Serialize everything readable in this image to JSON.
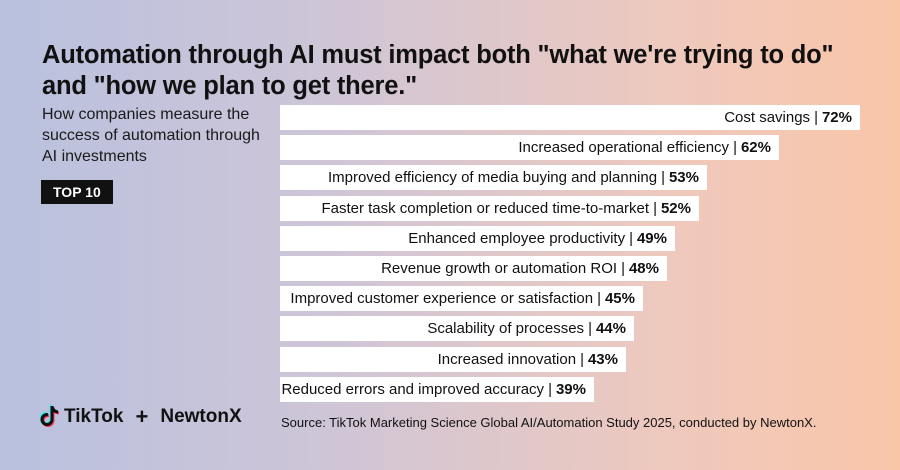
{
  "header": {
    "title": "Automation through AI must impact both \"what we're trying to do\" and \"how we plan to get there.\"",
    "subtitle": "How companies measure the success of automation through AI investments",
    "badge": "TOP 10"
  },
  "chart_data": {
    "type": "bar",
    "orientation": "horizontal",
    "title": "How companies measure the success of automation through AI investments",
    "categories": [
      "Cost savings",
      "Increased operational efficiency",
      "Improved efficiency of media buying and planning",
      "Faster task completion or reduced time-to-market",
      "Enhanced employee productivity",
      "Revenue growth or automation ROI",
      "Improved customer experience or satisfaction",
      "Scalability of processes",
      "Increased innovation",
      "Reduced errors and improved accuracy"
    ],
    "values": [
      72,
      62,
      53,
      52,
      49,
      48,
      45,
      44,
      43,
      39
    ],
    "labels": [
      "72%",
      "62%",
      "53%",
      "52%",
      "49%",
      "48%",
      "45%",
      "44%",
      "43%",
      "39%"
    ],
    "unit": "%",
    "separator": "|"
  },
  "footer": {
    "brand_left": "TikTok",
    "plus": "+",
    "brand_right": "NewtonX",
    "source": "Source: TikTok Marketing Science Global AI/Automation Study 2025, conducted by NewtonX."
  },
  "colors": {
    "bar": "#ffffff",
    "badge_bg": "#111111",
    "text": "#111111"
  },
  "icons": {
    "tiktok": "tiktok-logo-icon"
  }
}
